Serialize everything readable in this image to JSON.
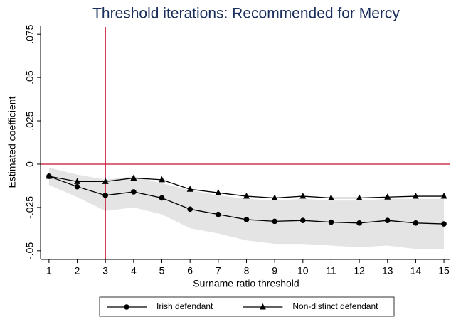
{
  "chart_data": {
    "type": "line",
    "title": "Threshold iterations: Recommended for Mercy",
    "xlabel": "Surname ratio threshold",
    "ylabel": "Estimated coefficient",
    "x": [
      1,
      2,
      3,
      4,
      5,
      6,
      7,
      8,
      9,
      10,
      11,
      12,
      13,
      14,
      15
    ],
    "series": [
      {
        "name": "Irish defendant",
        "color": "#000000",
        "marker": "circle",
        "values": [
          -0.007,
          -0.013,
          -0.018,
          -0.016,
          -0.0195,
          -0.026,
          -0.029,
          -0.032,
          -0.033,
          -0.0325,
          -0.0335,
          -0.034,
          -0.0325,
          -0.034,
          -0.0345
        ]
      },
      {
        "name": "Non-distinct defendant",
        "color": "#000000",
        "marker": "triangle",
        "values": [
          -0.007,
          -0.01,
          -0.01,
          -0.008,
          -0.009,
          -0.0145,
          -0.0165,
          -0.0185,
          -0.0195,
          -0.0185,
          -0.0195,
          -0.0195,
          -0.019,
          -0.0185,
          -0.0185
        ]
      }
    ],
    "band": {
      "color": "#e4e4e4",
      "upper": [
        -0.002,
        -0.006,
        -0.009,
        -0.007,
        -0.011,
        -0.015,
        -0.018,
        -0.02,
        -0.021,
        -0.02,
        -0.021,
        -0.021,
        -0.02,
        -0.02,
        -0.02
      ],
      "lower": [
        -0.012,
        -0.019,
        -0.027,
        -0.025,
        -0.029,
        -0.037,
        -0.04,
        -0.044,
        -0.046,
        -0.046,
        -0.047,
        -0.048,
        -0.047,
        -0.049,
        -0.049
      ]
    },
    "hline": 0,
    "vline": 3,
    "refline_color": "#c8102e",
    "xlim": [
      0.7,
      15.2
    ],
    "ylim": [
      -0.055,
      0.08
    ],
    "xticks": [
      1,
      2,
      3,
      4,
      5,
      6,
      7,
      8,
      9,
      10,
      11,
      12,
      13,
      14,
      15
    ],
    "yticks": [
      {
        "value": -0.05,
        "label": "-.05"
      },
      {
        "value": -0.025,
        "label": "-.025"
      },
      0,
      {
        "value": 0.025,
        "label": ".025"
      },
      {
        "value": 0.05,
        "label": ".05"
      },
      {
        "value": 0.075,
        "label": ".075"
      }
    ],
    "legend": "bottom"
  }
}
